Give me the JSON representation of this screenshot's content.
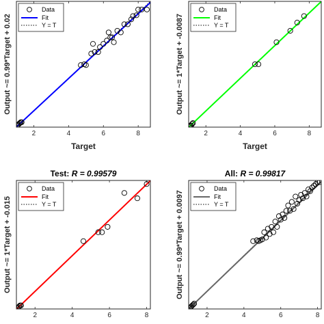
{
  "chart_data": [
    {
      "type": "scatter",
      "title": "",
      "title_value": "",
      "xlabel": "Target",
      "ylabel": "Output ~= 0.99*Target + 0.02",
      "x_ticks": [
        "2",
        "4",
        "6",
        "8"
      ],
      "xlim": [
        1,
        8.7
      ],
      "ylim": [
        1,
        8.7
      ],
      "fit_color": "#0000ff",
      "legend": {
        "data": "Data",
        "fit": "Fit",
        "yt": "Y = T",
        "position": "top-left"
      },
      "fit": {
        "slope": 0.99,
        "intercept": 0.02
      },
      "points": [
        [
          1.05,
          1.1
        ],
        [
          1.1,
          1.15
        ],
        [
          1.15,
          1.2
        ],
        [
          1.2,
          1.25
        ],
        [
          1.25,
          1.3
        ],
        [
          1.3,
          1.3
        ],
        [
          4.7,
          4.8
        ],
        [
          4.9,
          4.85
        ],
        [
          5.0,
          4.8
        ],
        [
          5.3,
          5.5
        ],
        [
          5.4,
          6.1
        ],
        [
          5.5,
          5.6
        ],
        [
          5.7,
          5.6
        ],
        [
          5.8,
          5.9
        ],
        [
          6.0,
          6.1
        ],
        [
          6.2,
          6.3
        ],
        [
          6.3,
          6.8
        ],
        [
          6.4,
          6.5
        ],
        [
          6.5,
          6.5
        ],
        [
          6.6,
          6.2
        ],
        [
          6.8,
          6.9
        ],
        [
          7.0,
          6.8
        ],
        [
          7.2,
          7.3
        ],
        [
          7.4,
          7.3
        ],
        [
          7.6,
          7.6
        ],
        [
          7.7,
          7.8
        ],
        [
          7.9,
          7.85
        ],
        [
          8.0,
          8.2
        ],
        [
          8.2,
          8.2
        ],
        [
          8.5,
          8.2
        ]
      ]
    },
    {
      "type": "scatter",
      "title": "",
      "title_value": "",
      "xlabel": "Target",
      "ylabel": "Output ~= 1*Target + -0.0087",
      "x_ticks": [
        "2",
        "4",
        "6",
        "8"
      ],
      "xlim": [
        1,
        8.7
      ],
      "ylim": [
        1,
        8.7
      ],
      "fit_color": "#00ff00",
      "legend": {
        "data": "Data",
        "fit": "Fit",
        "yt": "Y = T",
        "position": "top-left"
      },
      "fit": {
        "slope": 1.0,
        "intercept": -0.0087
      },
      "points": [
        [
          1.05,
          1.05
        ],
        [
          1.1,
          1.1
        ],
        [
          1.15,
          1.1
        ],
        [
          1.2,
          1.2
        ],
        [
          1.25,
          1.25
        ],
        [
          4.85,
          4.85
        ],
        [
          5.05,
          4.85
        ],
        [
          6.1,
          6.2
        ],
        [
          6.9,
          6.9
        ],
        [
          7.3,
          7.4
        ],
        [
          7.7,
          7.8
        ]
      ]
    },
    {
      "type": "scatter",
      "title": "Test: ",
      "title_value": "R = 0.99579",
      "xlabel": "",
      "ylabel": "Output ~= 1*Target + -0.015",
      "x_ticks": [
        "2",
        "4",
        "6",
        "8"
      ],
      "xlim": [
        1,
        8.2
      ],
      "ylim": [
        1,
        8.2
      ],
      "fit_color": "#ff0000",
      "legend": {
        "data": "Data",
        "fit": "Fit",
        "yt": "Y = T",
        "position": "top-left"
      },
      "fit": {
        "slope": 1.0,
        "intercept": -0.015
      },
      "points": [
        [
          1.05,
          1.05
        ],
        [
          1.1,
          1.1
        ],
        [
          1.15,
          1.15
        ],
        [
          1.2,
          1.2
        ],
        [
          1.25,
          1.2
        ],
        [
          4.6,
          4.8
        ],
        [
          5.4,
          5.3
        ],
        [
          5.6,
          5.3
        ],
        [
          5.9,
          5.6
        ],
        [
          6.8,
          7.5
        ],
        [
          7.5,
          7.2
        ],
        [
          8.0,
          8.0
        ]
      ]
    },
    {
      "type": "scatter",
      "title": "All: ",
      "title_value": "R = 0.99817",
      "xlabel": "",
      "ylabel": "Output ~= 0.99*Target + 0.0097",
      "x_ticks": [
        "2",
        "4",
        "6",
        "8"
      ],
      "xlim": [
        1,
        8.2
      ],
      "ylim": [
        1,
        8.2
      ],
      "fit_color": "#666666",
      "legend": {
        "data": "Data",
        "fit": "Fit",
        "yt": "Y = T",
        "position": "top-left"
      },
      "fit": {
        "slope": 0.99,
        "intercept": 0.0097
      },
      "points": [
        [
          1.05,
          1.05
        ],
        [
          1.1,
          1.1
        ],
        [
          1.15,
          1.15
        ],
        [
          1.2,
          1.2
        ],
        [
          1.25,
          1.25
        ],
        [
          1.3,
          1.3
        ],
        [
          4.5,
          4.8
        ],
        [
          4.7,
          4.85
        ],
        [
          4.8,
          4.8
        ],
        [
          4.9,
          4.85
        ],
        [
          5.0,
          4.9
        ],
        [
          5.1,
          5.3
        ],
        [
          5.2,
          5.0
        ],
        [
          5.3,
          5.5
        ],
        [
          5.4,
          5.2
        ],
        [
          5.5,
          5.6
        ],
        [
          5.6,
          5.3
        ],
        [
          5.7,
          5.9
        ],
        [
          5.8,
          5.6
        ],
        [
          5.9,
          6.2
        ],
        [
          6.0,
          6.0
        ],
        [
          6.1,
          6.3
        ],
        [
          6.2,
          6.1
        ],
        [
          6.3,
          6.5
        ],
        [
          6.4,
          6.8
        ],
        [
          6.5,
          6.5
        ],
        [
          6.6,
          7.0
        ],
        [
          6.7,
          6.6
        ],
        [
          6.8,
          7.3
        ],
        [
          6.9,
          6.9
        ],
        [
          7.0,
          7.1
        ],
        [
          7.1,
          7.4
        ],
        [
          7.2,
          7.2
        ],
        [
          7.3,
          7.5
        ],
        [
          7.4,
          7.3
        ],
        [
          7.5,
          7.7
        ],
        [
          7.6,
          7.6
        ],
        [
          7.7,
          7.8
        ],
        [
          7.8,
          7.9
        ],
        [
          7.9,
          8.0
        ],
        [
          8.0,
          8.1
        ],
        [
          8.1,
          8.1
        ]
      ]
    }
  ]
}
